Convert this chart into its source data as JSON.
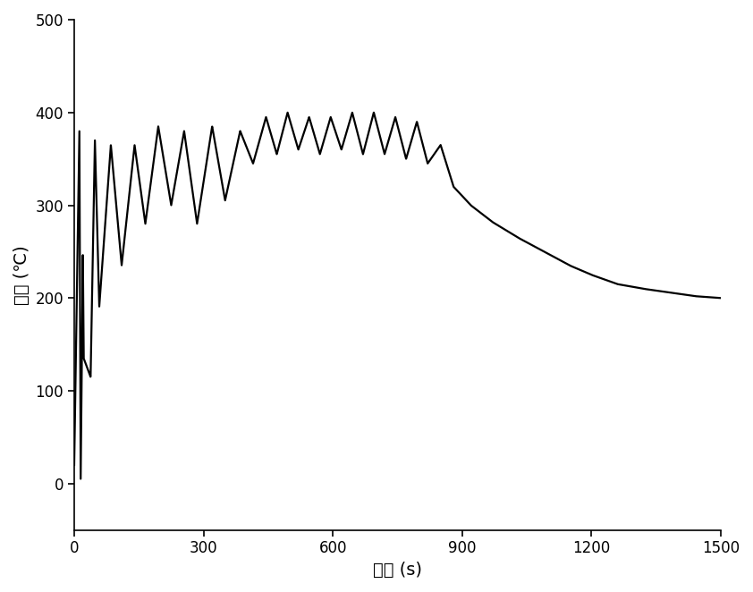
{
  "xlabel": "时间 (s)",
  "ylabel": "温度 (℃)",
  "xlim": [
    0,
    1500
  ],
  "ylim": [
    -50,
    500
  ],
  "xticks": [
    0,
    300,
    600,
    900,
    1200,
    1500
  ],
  "yticks": [
    0,
    100,
    200,
    300,
    400,
    500
  ],
  "line_color": "#000000",
  "line_width": 1.6,
  "background_color": "#ffffff",
  "keypoints": [
    [
      0,
      20
    ],
    [
      12,
      380
    ],
    [
      15,
      5
    ],
    [
      20,
      250
    ],
    [
      22,
      135
    ],
    [
      38,
      115
    ],
    [
      48,
      370
    ],
    [
      58,
      190
    ],
    [
      85,
      365
    ],
    [
      110,
      235
    ],
    [
      140,
      365
    ],
    [
      165,
      280
    ],
    [
      195,
      385
    ],
    [
      225,
      300
    ],
    [
      255,
      380
    ],
    [
      285,
      280
    ],
    [
      320,
      385
    ],
    [
      350,
      305
    ],
    [
      385,
      380
    ],
    [
      415,
      345
    ],
    [
      445,
      395
    ],
    [
      470,
      355
    ],
    [
      495,
      400
    ],
    [
      520,
      360
    ],
    [
      545,
      395
    ],
    [
      570,
      355
    ],
    [
      595,
      395
    ],
    [
      620,
      360
    ],
    [
      645,
      400
    ],
    [
      670,
      355
    ],
    [
      695,
      400
    ],
    [
      720,
      355
    ],
    [
      745,
      395
    ],
    [
      770,
      350
    ],
    [
      795,
      390
    ],
    [
      820,
      345
    ],
    [
      850,
      365
    ],
    [
      880,
      320
    ],
    [
      920,
      300
    ],
    [
      970,
      282
    ],
    [
      1030,
      265
    ],
    [
      1090,
      250
    ],
    [
      1150,
      235
    ],
    [
      1200,
      225
    ],
    [
      1260,
      215
    ],
    [
      1320,
      210
    ],
    [
      1380,
      206
    ],
    [
      1440,
      202
    ],
    [
      1500,
      200
    ]
  ]
}
